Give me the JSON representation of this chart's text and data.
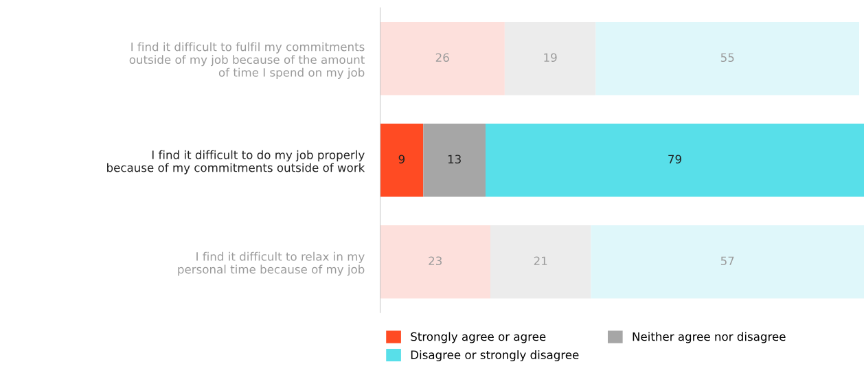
{
  "chart_data": {
    "type": "bar",
    "orientation": "horizontal",
    "stacked": true,
    "data_labels": true,
    "grid": false,
    "legend": "bottom",
    "tick_labels": "y",
    "categories": [
      "I find it difficult to fulfil my commitments\noutside of my job because of the amount\nof time I spend on my job",
      "I find it difficult to do my job properly\nbecause of my commitments outside of work",
      "I find it difficult to relax in my\npersonal time because of my job"
    ],
    "series": [
      {
        "name": "Strongly agree or agree",
        "color": "#ff4b23",
        "colors": [
          "#fde0dc",
          "#ff4b23",
          "#fde0dc"
        ],
        "values": [
          26,
          9,
          23
        ]
      },
      {
        "name": "Neither agree nor disagree",
        "color": "#a6a6a6",
        "colors": [
          "#ececec",
          "#a6a6a6",
          "#ececec"
        ],
        "values": [
          19,
          13,
          21
        ]
      },
      {
        "name": "Disagree or strongly disagree",
        "color": "#58dfe9",
        "colors": [
          "#dff7fa",
          "#58dfe9",
          "#dff7fa"
        ],
        "values": [
          55,
          79,
          57
        ]
      }
    ]
  }
}
